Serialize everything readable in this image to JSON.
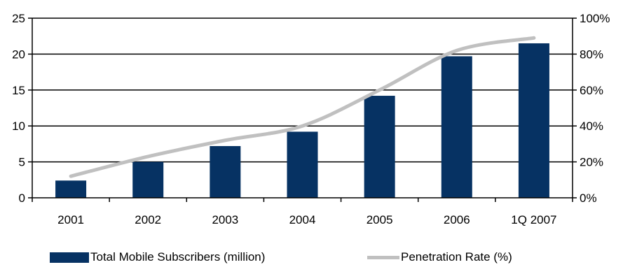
{
  "chart_data": {
    "type": "bar",
    "categories": [
      "2001",
      "2002",
      "2003",
      "2004",
      "2005",
      "2006",
      "1Q 2007"
    ],
    "series": [
      {
        "name": "Total Mobile Subscribers (million)",
        "type": "bar",
        "axis": "left",
        "values": [
          2.4,
          5.0,
          7.2,
          9.2,
          14.2,
          19.7,
          21.5
        ]
      },
      {
        "name": "Penetration Rate (%)",
        "type": "line",
        "axis": "right",
        "values": [
          12,
          23,
          32,
          40,
          60,
          82,
          89
        ]
      }
    ],
    "y_left": {
      "ylim": [
        0,
        25
      ],
      "ticks": [
        0,
        5,
        10,
        15,
        20,
        25
      ],
      "labels": [
        "0",
        "5",
        "10",
        "15",
        "20",
        "25"
      ]
    },
    "y_right": {
      "ylim": [
        0,
        100
      ],
      "ticks": [
        0,
        20,
        40,
        60,
        80,
        100
      ],
      "labels": [
        "0%",
        "20%",
        "40%",
        "60%",
        "80%",
        "100%"
      ]
    },
    "grid": true,
    "legend_position": "bottom",
    "colors": {
      "bar": "#063263",
      "line": "#c0c0c0",
      "axis": "#000000"
    }
  },
  "legend": {
    "bar_label": "Total Mobile Subscribers (million)",
    "line_label": "Penetration Rate (%)"
  }
}
